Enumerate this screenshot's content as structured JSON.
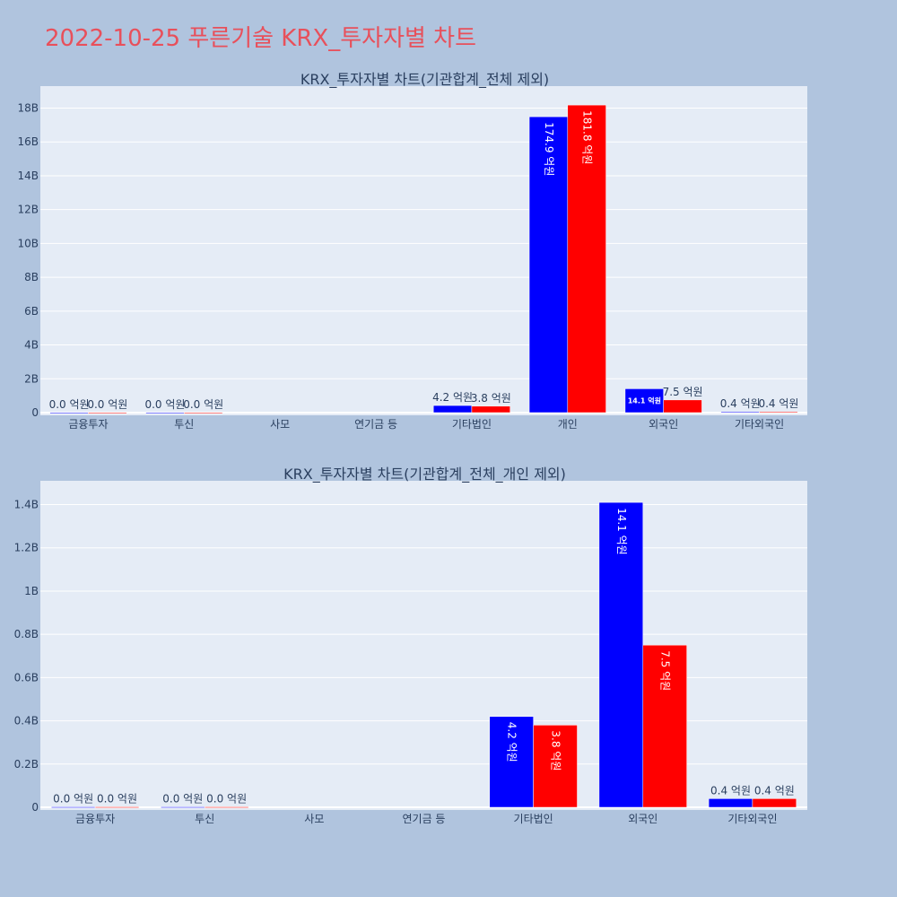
{
  "page": {
    "title": "2022-10-25 푸른기술 KRX_투자자별 차트"
  },
  "colors": {
    "buy": "#0000ff",
    "sell": "#ff0000",
    "plot_bg": "#e5ecf6",
    "page_bg": "#b0c4de",
    "title": "#e8505b"
  },
  "chart_data": [
    {
      "type": "bar",
      "title": "KRX_투자자별 차트(기관합계_전체 제외)",
      "categories": [
        "금융투자",
        "투신",
        "사모",
        "연기금 등",
        "기타법인",
        "개인",
        "외국인",
        "기타외국인"
      ],
      "series": [
        {
          "values": [
            2000000,
            2000000,
            0,
            0,
            420000000,
            17490000000,
            1410000000,
            40000000
          ],
          "labels": [
            "0.0 억원",
            "0.0 억원",
            "",
            "",
            "4.2 억원",
            "174.9 억원",
            "14.1 억원",
            "0.4 억원"
          ]
        },
        {
          "values": [
            2000000,
            2000000,
            0,
            0,
            380000000,
            18180000000,
            750000000,
            40000000
          ],
          "labels": [
            "0.0 억원",
            "0.0 억원",
            "",
            "",
            "3.8 억원",
            "181.8 억원",
            "7.5 억원",
            "0.4 억원"
          ]
        }
      ],
      "ylim": [
        0,
        19300000000
      ],
      "yticks": [
        0,
        2000000000,
        4000000000,
        6000000000,
        8000000000,
        10000000000,
        12000000000,
        14000000000,
        16000000000,
        18000000000
      ],
      "ytick_labels": [
        "0",
        "2B",
        "4B",
        "6B",
        "8B",
        "10B",
        "12B",
        "14B",
        "16B",
        "18B"
      ],
      "grid": true
    },
    {
      "type": "bar",
      "title": "KRX_투자자별 차트(기관합계_전체_개인 제외)",
      "categories": [
        "금융투자",
        "투신",
        "사모",
        "연기금 등",
        "기타법인",
        "외국인",
        "기타외국인"
      ],
      "series": [
        {
          "values": [
            2000000,
            2000000,
            0,
            0,
            420000000,
            1410000000,
            40000000
          ],
          "labels": [
            "0.0 억원",
            "0.0 억원",
            "",
            "",
            "4.2 억원",
            "14.1 억원",
            "0.4 억원"
          ]
        },
        {
          "values": [
            2000000,
            2000000,
            0,
            0,
            380000000,
            750000000,
            40000000
          ],
          "labels": [
            "0.0 억원",
            "0.0 억원",
            "",
            "",
            "3.8 억원",
            "7.5 억원",
            "0.4 억원"
          ]
        }
      ],
      "ylim": [
        0,
        1510000000
      ],
      "yticks": [
        0,
        200000000,
        400000000,
        600000000,
        800000000,
        1000000000,
        1200000000,
        1400000000
      ],
      "ytick_labels": [
        "0",
        "0.2B",
        "0.4B",
        "0.6B",
        "0.8B",
        "1B",
        "1.2B",
        "1.4B"
      ],
      "grid": true
    }
  ]
}
